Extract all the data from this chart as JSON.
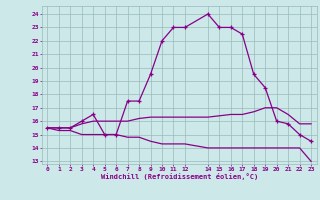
{
  "xlabel": "Windchill (Refroidissement éolien,°C)",
  "bg_color": "#cce8e8",
  "grid_color": "#99bbbb",
  "line_color": "#880088",
  "x_ticks": [
    0,
    1,
    2,
    3,
    4,
    5,
    6,
    7,
    8,
    9,
    10,
    11,
    12,
    14,
    15,
    16,
    17,
    18,
    19,
    20,
    21,
    22,
    23
  ],
  "y_ticks": [
    13,
    14,
    15,
    16,
    17,
    18,
    19,
    20,
    21,
    22,
    23,
    24
  ],
  "xlim": [
    -0.5,
    23.5
  ],
  "ylim": [
    12.8,
    24.6
  ],
  "line1_x": [
    0,
    1,
    2,
    3,
    4,
    5,
    6,
    7,
    8,
    9,
    10,
    11,
    12,
    14,
    15,
    16,
    17,
    18,
    19,
    20,
    21,
    22,
    23
  ],
  "line1_y": [
    15.5,
    15.5,
    15.5,
    16.0,
    16.5,
    15.0,
    15.0,
    17.5,
    17.5,
    19.5,
    22.0,
    23.0,
    23.0,
    24.0,
    23.0,
    23.0,
    22.5,
    19.5,
    18.5,
    16.0,
    15.8,
    15.0,
    14.5
  ],
  "line2_x": [
    0,
    1,
    2,
    3,
    4,
    5,
    6,
    7,
    8,
    9,
    10,
    11,
    12,
    14,
    15,
    16,
    17,
    18,
    19,
    20,
    21,
    22,
    23
  ],
  "line2_y": [
    15.5,
    15.5,
    15.5,
    15.8,
    16.0,
    16.0,
    16.0,
    16.0,
    16.2,
    16.3,
    16.3,
    16.3,
    16.3,
    16.3,
    16.4,
    16.5,
    16.5,
    16.7,
    17.0,
    17.0,
    16.5,
    15.8,
    15.8
  ],
  "line3_x": [
    0,
    1,
    2,
    3,
    4,
    5,
    6,
    7,
    8,
    9,
    10,
    11,
    12,
    14,
    15,
    16,
    17,
    18,
    19,
    20,
    21,
    22,
    23
  ],
  "line3_y": [
    15.5,
    15.3,
    15.3,
    15.0,
    15.0,
    15.0,
    15.0,
    14.8,
    14.8,
    14.5,
    14.3,
    14.3,
    14.3,
    14.0,
    14.0,
    14.0,
    14.0,
    14.0,
    14.0,
    14.0,
    14.0,
    14.0,
    13.0
  ]
}
